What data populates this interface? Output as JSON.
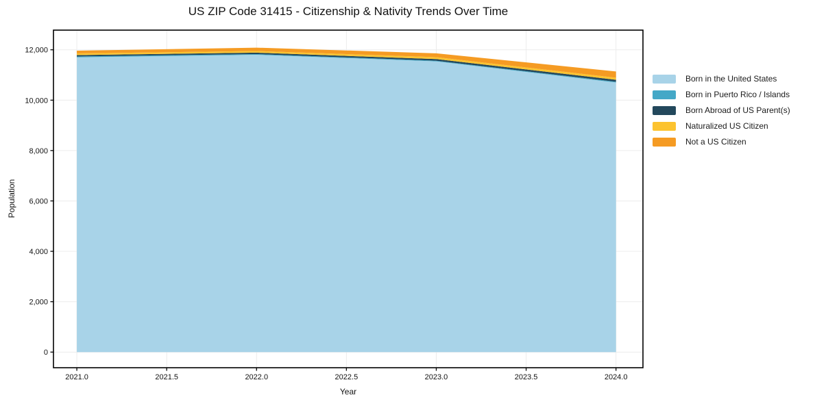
{
  "chart_data": {
    "type": "area",
    "stacked": true,
    "title": "US ZIP Code 31415 - Citizenship & Nativity Trends Over Time",
    "xlabel": "Year",
    "ylabel": "Population",
    "x": [
      2021,
      2022,
      2023,
      2024
    ],
    "series": [
      {
        "name": "Born in the United States",
        "color": "#a8d3e8",
        "values": [
          11700,
          11800,
          11540,
          10700
        ]
      },
      {
        "name": "Born in Puerto Rico / Islands",
        "color": "#44a8c7",
        "values": [
          35,
          30,
          25,
          30
        ]
      },
      {
        "name": "Born Abroad of US Parent(s)",
        "color": "#23485c",
        "values": [
          55,
          55,
          65,
          80
        ]
      },
      {
        "name": "Naturalized US Citizen",
        "color": "#fcc32f",
        "values": [
          65,
          65,
          75,
          80
        ]
      },
      {
        "name": "Not a US Citizen",
        "color": "#f59b23",
        "values": [
          110,
          135,
          155,
          250
        ]
      }
    ],
    "x_ticks": {
      "values": [
        2021.0,
        2021.5,
        2022.0,
        2022.5,
        2023.0,
        2023.5,
        2024.0
      ],
      "labels": [
        "2021.0",
        "2021.5",
        "2022.0",
        "2022.5",
        "2023.0",
        "2023.5",
        "2024.0"
      ]
    },
    "y_ticks": {
      "values": [
        0,
        2000,
        4000,
        6000,
        8000,
        10000,
        12000
      ],
      "labels": [
        "0",
        "2,000",
        "4,000",
        "6,000",
        "8,000",
        "10,000",
        "12,000"
      ]
    },
    "xlim": [
      2020.87,
      2024.15
    ],
    "ylim": [
      -620,
      12780
    ],
    "grid": true,
    "legend_position": "right-outside"
  },
  "colors": {
    "background": "#ffffff",
    "grid": "#ececec",
    "spine": "#000000",
    "tick_text": "#111111"
  }
}
